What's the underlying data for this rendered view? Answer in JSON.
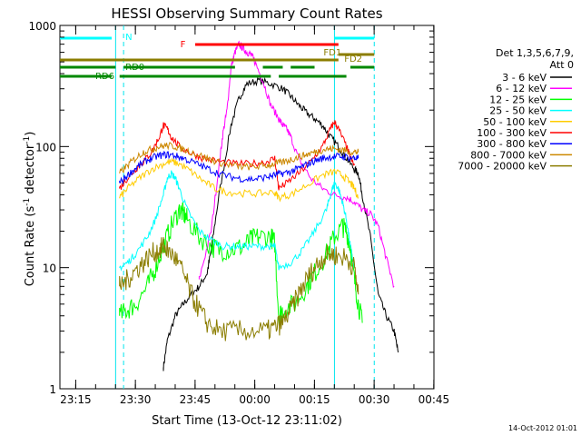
{
  "chart_data": {
    "type": "line",
    "title": "HESSI Observing Summary Count Rates",
    "xlabel": "Start Time (13-Oct-12 23:11:02)",
    "ylabel_main": "Count Rate (s",
    "ylabel_sup1": "-1",
    "ylabel_mid": " detector",
    "ylabel_sup2": "-1",
    "ylabel_end": ")",
    "y_scale": "log",
    "ylim": [
      1,
      1000
    ],
    "x_ticks": [
      "23:15",
      "23:30",
      "23:45",
      "00:00",
      "00:15",
      "00:30",
      "00:45"
    ],
    "y_ticks": [
      "1",
      "10",
      "100",
      "1000"
    ],
    "legend_header": [
      "Det 1,3,5,6,7,9,",
      "Att 0"
    ],
    "footer_timestamp": "14-Oct-2012 01:01",
    "series": [
      {
        "name": "3 - 6 keV",
        "color": "#000000",
        "points": [
          [
            26,
            1.5
          ],
          [
            27,
            2.5
          ],
          [
            29,
            4
          ],
          [
            31,
            5
          ],
          [
            33,
            6
          ],
          [
            35,
            7
          ],
          [
            37,
            9
          ],
          [
            38,
            14
          ],
          [
            40,
            40
          ],
          [
            43,
            150
          ],
          [
            45,
            250
          ],
          [
            47,
            330
          ],
          [
            50,
            350
          ],
          [
            53,
            330
          ],
          [
            56,
            300
          ],
          [
            58,
            260
          ],
          [
            60,
            220
          ],
          [
            62,
            190
          ],
          [
            64,
            170
          ],
          [
            66,
            150
          ],
          [
            68,
            120
          ],
          [
            70,
            100
          ],
          [
            72,
            80
          ],
          [
            74,
            65
          ],
          [
            75,
            60
          ],
          [
            76,
            40
          ],
          [
            78,
            18
          ],
          [
            80,
            6
          ],
          [
            82,
            4
          ],
          [
            84,
            3
          ],
          [
            85,
            2
          ]
        ]
      },
      {
        "name": "6 - 12 keV",
        "color": "#ff00ff",
        "points": [
          [
            35,
            8
          ],
          [
            38,
            20
          ],
          [
            40,
            70
          ],
          [
            41,
            130
          ],
          [
            42,
            200
          ],
          [
            43,
            450
          ],
          [
            44,
            600
          ],
          [
            45,
            700
          ],
          [
            46,
            650
          ],
          [
            47,
            600
          ],
          [
            48,
            580
          ],
          [
            49,
            500
          ],
          [
            51,
            350
          ],
          [
            53,
            220
          ],
          [
            55,
            170
          ],
          [
            56,
            150
          ],
          [
            57,
            140
          ],
          [
            58,
            120
          ],
          [
            60,
            80
          ],
          [
            63,
            55
          ],
          [
            66,
            45
          ],
          [
            69,
            40
          ],
          [
            72,
            38
          ],
          [
            74,
            35
          ],
          [
            76,
            30
          ],
          [
            78,
            28
          ],
          [
            80,
            22
          ],
          [
            82,
            12
          ],
          [
            84,
            7
          ]
        ]
      },
      {
        "name": "12 - 25 keV",
        "color": "#00ff00",
        "points": [
          [
            15,
            4
          ],
          [
            17,
            4.5
          ],
          [
            19,
            5
          ],
          [
            22,
            7
          ],
          [
            24,
            10
          ],
          [
            26,
            15
          ],
          [
            28,
            22
          ],
          [
            30,
            30
          ],
          [
            31,
            28
          ],
          [
            32,
            25
          ],
          [
            35,
            18
          ],
          [
            38,
            15
          ],
          [
            40,
            14
          ],
          [
            43,
            14
          ],
          [
            46,
            15
          ],
          [
            48,
            17
          ],
          [
            50,
            18
          ],
          [
            53,
            18
          ],
          [
            54,
            16
          ],
          [
            55,
            4
          ],
          [
            56,
            4.5
          ],
          [
            59,
            5
          ],
          [
            62,
            7
          ],
          [
            64,
            9
          ],
          [
            67,
            13
          ],
          [
            69,
            18
          ],
          [
            71,
            22
          ],
          [
            72,
            20
          ],
          [
            73,
            15
          ],
          [
            74,
            8
          ],
          [
            75,
            5
          ],
          [
            76,
            3.5
          ]
        ]
      },
      {
        "name": "25 - 50 keV",
        "color": "#00ffff",
        "points": [
          [
            15,
            10
          ],
          [
            17,
            11
          ],
          [
            19,
            13
          ],
          [
            22,
            18
          ],
          [
            24,
            25
          ],
          [
            26,
            40
          ],
          [
            27,
            55
          ],
          [
            28,
            60
          ],
          [
            29,
            55
          ],
          [
            30,
            45
          ],
          [
            32,
            30
          ],
          [
            35,
            20
          ],
          [
            38,
            17
          ],
          [
            41,
            15
          ],
          [
            44,
            15
          ],
          [
            47,
            15
          ],
          [
            50,
            15
          ],
          [
            53,
            15
          ],
          [
            54,
            15
          ],
          [
            55,
            10
          ],
          [
            58,
            11
          ],
          [
            61,
            14
          ],
          [
            64,
            20
          ],
          [
            67,
            30
          ],
          [
            68,
            40
          ],
          [
            69,
            50
          ],
          [
            70,
            45
          ],
          [
            71,
            35
          ],
          [
            72,
            25
          ],
          [
            73,
            15
          ],
          [
            74,
            10
          ]
        ]
      },
      {
        "name": "50 - 100 keV",
        "color": "#ffcc00",
        "points": [
          [
            15,
            38
          ],
          [
            17,
            45
          ],
          [
            20,
            55
          ],
          [
            23,
            65
          ],
          [
            26,
            72
          ],
          [
            28,
            75
          ],
          [
            30,
            72
          ],
          [
            33,
            62
          ],
          [
            36,
            52
          ],
          [
            39,
            45
          ],
          [
            42,
            42
          ],
          [
            46,
            41
          ],
          [
            50,
            41
          ],
          [
            54,
            42
          ],
          [
            55,
            38
          ],
          [
            58,
            40
          ],
          [
            62,
            48
          ],
          [
            66,
            58
          ],
          [
            69,
            62
          ],
          [
            71,
            58
          ],
          [
            73,
            50
          ],
          [
            74,
            45
          ],
          [
            75,
            38
          ]
        ]
      },
      {
        "name": "100 - 300 keV",
        "color": "#ff0000",
        "points": [
          [
            15,
            45
          ],
          [
            17,
            55
          ],
          [
            19,
            65
          ],
          [
            21,
            75
          ],
          [
            23,
            90
          ],
          [
            25,
            120
          ],
          [
            26,
            150
          ],
          [
            27,
            140
          ],
          [
            28,
            120
          ],
          [
            30,
            100
          ],
          [
            33,
            88
          ],
          [
            36,
            80
          ],
          [
            40,
            75
          ],
          [
            44,
            72
          ],
          [
            48,
            72
          ],
          [
            52,
            75
          ],
          [
            54,
            80
          ],
          [
            55,
            45
          ],
          [
            57,
            50
          ],
          [
            60,
            60
          ],
          [
            63,
            75
          ],
          [
            66,
            100
          ],
          [
            68,
            140
          ],
          [
            69,
            160
          ],
          [
            70,
            140
          ],
          [
            72,
            100
          ],
          [
            73,
            80
          ],
          [
            74,
            70
          ]
        ]
      },
      {
        "name": "300 - 800 keV",
        "color": "#0000ff",
        "points": [
          [
            15,
            50
          ],
          [
            17,
            58
          ],
          [
            19,
            66
          ],
          [
            21,
            74
          ],
          [
            23,
            80
          ],
          [
            25,
            84
          ],
          [
            27,
            86
          ],
          [
            29,
            84
          ],
          [
            31,
            80
          ],
          [
            34,
            73
          ],
          [
            37,
            66
          ],
          [
            40,
            60
          ],
          [
            43,
            56
          ],
          [
            46,
            54
          ],
          [
            49,
            54
          ],
          [
            52,
            56
          ],
          [
            54,
            58
          ],
          [
            56,
            60
          ],
          [
            58,
            62
          ],
          [
            60,
            66
          ],
          [
            62,
            71
          ],
          [
            64,
            76
          ],
          [
            66,
            80
          ],
          [
            68,
            82
          ],
          [
            70,
            83
          ],
          [
            72,
            82
          ],
          [
            74,
            80
          ],
          [
            75,
            80
          ]
        ]
      },
      {
        "name": "800 - 7000 keV",
        "color": "#cc8800",
        "points": [
          [
            15,
            60
          ],
          [
            17,
            70
          ],
          [
            19,
            80
          ],
          [
            21,
            90
          ],
          [
            23,
            95
          ],
          [
            25,
            100
          ],
          [
            27,
            102
          ],
          [
            29,
            100
          ],
          [
            31,
            95
          ],
          [
            34,
            88
          ],
          [
            37,
            80
          ],
          [
            40,
            74
          ],
          [
            43,
            70
          ],
          [
            46,
            68
          ],
          [
            49,
            68
          ],
          [
            52,
            70
          ],
          [
            54,
            72
          ],
          [
            56,
            74
          ],
          [
            58,
            78
          ],
          [
            60,
            82
          ],
          [
            62,
            86
          ],
          [
            64,
            90
          ],
          [
            66,
            94
          ],
          [
            68,
            96
          ],
          [
            70,
            95
          ],
          [
            72,
            92
          ],
          [
            74,
            90
          ],
          [
            75,
            90
          ]
        ]
      },
      {
        "name": "7000 - 20000 keV",
        "color": "#8b7d00",
        "points": [
          [
            15,
            7
          ],
          [
            17,
            8
          ],
          [
            19,
            9.5
          ],
          [
            21,
            11
          ],
          [
            23,
            13
          ],
          [
            25,
            14
          ],
          [
            26,
            15
          ],
          [
            27,
            14
          ],
          [
            29,
            12
          ],
          [
            31,
            9
          ],
          [
            33,
            6
          ],
          [
            35,
            4.5
          ],
          [
            37,
            3.5
          ],
          [
            40,
            3
          ],
          [
            44,
            3
          ],
          [
            48,
            3
          ],
          [
            52,
            3
          ],
          [
            54,
            3.2
          ],
          [
            56,
            3.5
          ],
          [
            58,
            4.5
          ],
          [
            60,
            6
          ],
          [
            62,
            8
          ],
          [
            64,
            10
          ],
          [
            66,
            12
          ],
          [
            68,
            13
          ],
          [
            70,
            12.5
          ],
          [
            72,
            12
          ],
          [
            74,
            10
          ],
          [
            75,
            6
          ]
        ]
      }
    ],
    "flags": [
      {
        "name": "N",
        "color": "#00ffff",
        "segments": [
          [
            0,
            13
          ],
          [
            69,
            79
          ]
        ],
        "y_level": 0
      },
      {
        "name": "F",
        "color": "#ff0000",
        "segments": [
          [
            34,
            70
          ]
        ],
        "y_level": 1
      },
      {
        "name": "FD1",
        "color": "#8b7d00",
        "segments": [
          [
            0,
            70
          ]
        ],
        "y_level": 2
      },
      {
        "name": "FD2",
        "color": "#8b7d00",
        "segments": [
          [
            70,
            79
          ]
        ],
        "y_level": 3
      },
      {
        "name": "RD0",
        "color": "#008800",
        "segments": [
          [
            0,
            14
          ],
          [
            16,
            44
          ],
          [
            51,
            56
          ],
          [
            58,
            64
          ],
          [
            73,
            79
          ]
        ],
        "y_level": 4
      },
      {
        "name": "RD6",
        "color": "#008800",
        "segments": [
          [
            0,
            13
          ],
          [
            15,
            53
          ],
          [
            55,
            72
          ]
        ],
        "y_level": 5
      }
    ],
    "vlines_solid": [
      14,
      69
    ],
    "vlines_dashed": [
      16,
      79
    ]
  }
}
